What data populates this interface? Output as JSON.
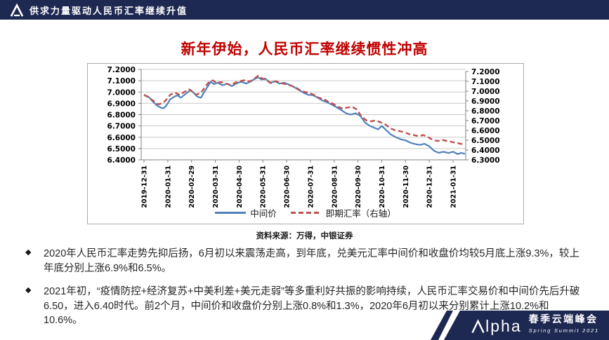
{
  "header": {
    "title": "供求力量驱动人民币汇率继续升值",
    "bg_color": "#1e2952"
  },
  "slide": {
    "title": "新年伊始，人民币汇率继续惯性冲高",
    "title_color": "#c00000"
  },
  "chart_data": {
    "type": "line",
    "title": "",
    "grid": true,
    "legend_position": "bottom",
    "x_tick_labels": [
      "2019-12-31",
      "2020-01-31",
      "2020-02-29",
      "2020-03-31",
      "2020-04-30",
      "2020-05-31",
      "2020-06-30",
      "2020-07-31",
      "2020-08-31",
      "2020-09-30",
      "2020-10-31",
      "2020-11-30",
      "2020-12-31",
      "2021-01-31"
    ],
    "left_axis": {
      "min": 6.4,
      "max": 7.2,
      "step": 0.1,
      "tick_labels": [
        "7.2000",
        "7.1000",
        "7.0000",
        "6.9000",
        "6.8000",
        "6.7000",
        "6.6000",
        "6.5000",
        "6.4000"
      ],
      "tick_values": [
        7.2,
        7.1,
        7.0,
        6.9,
        6.8,
        6.7,
        6.6,
        6.5,
        6.4
      ]
    },
    "right_axis": {
      "min": 6.3,
      "max": 7.2,
      "step": 0.1,
      "tick_labels": [
        "7.2000",
        "7.1000",
        "7.0000",
        "6.9000",
        "6.8000",
        "6.7000",
        "6.6000",
        "6.5000",
        "6.4000",
        "6.3000"
      ],
      "tick_values": [
        7.2,
        7.1,
        7.0,
        6.9,
        6.8,
        6.7,
        6.6,
        6.5,
        6.4,
        6.3
      ]
    },
    "series": [
      {
        "name": "中间价",
        "axis": "left",
        "color": "#4f81bd",
        "style": "solid",
        "x": [
          0,
          0.2,
          0.4,
          0.55,
          0.7,
          0.8,
          0.9,
          1.0,
          1.1,
          1.25,
          1.4,
          1.55,
          1.7,
          1.85,
          1.95,
          2.1,
          2.25,
          2.4,
          2.55,
          2.7,
          2.8,
          2.95,
          3.1,
          3.3,
          3.5,
          3.7,
          3.9,
          4.1,
          4.3,
          4.5,
          4.65,
          4.8,
          4.95,
          5.1,
          5.3,
          5.5,
          5.7,
          5.9,
          6.1,
          6.3,
          6.5,
          6.7,
          6.9,
          7.1,
          7.3,
          7.5,
          7.7,
          7.9,
          8.1,
          8.3,
          8.5,
          8.7,
          8.9,
          9.1,
          9.3,
          9.5,
          9.7,
          9.85,
          10.0,
          10.2,
          10.4,
          10.6,
          10.8,
          11.0,
          11.2,
          11.4,
          11.6,
          11.8,
          12.0,
          12.2,
          12.4,
          12.6,
          12.8,
          13.0,
          13.2,
          13.35,
          13.5
        ],
        "values": [
          6.976,
          6.955,
          6.91,
          6.88,
          6.862,
          6.855,
          6.87,
          6.9,
          6.935,
          6.955,
          6.972,
          6.95,
          6.975,
          7.0,
          7.02,
          6.99,
          6.958,
          6.95,
          7.005,
          7.055,
          7.09,
          7.07,
          7.083,
          7.06,
          7.072,
          7.052,
          7.078,
          7.09,
          7.075,
          7.095,
          7.115,
          7.13,
          7.11,
          7.12,
          7.08,
          7.095,
          7.075,
          7.082,
          7.065,
          7.045,
          7.02,
          6.995,
          6.975,
          6.973,
          6.95,
          6.925,
          6.91,
          6.888,
          6.865,
          6.84,
          6.812,
          6.8,
          6.812,
          6.788,
          6.73,
          6.7,
          6.682,
          6.67,
          6.7,
          6.66,
          6.622,
          6.6,
          6.582,
          6.572,
          6.552,
          6.54,
          6.532,
          6.542,
          6.52,
          6.48,
          6.462,
          6.472,
          6.46,
          6.472,
          6.45,
          6.462,
          6.452
        ]
      },
      {
        "name": "即期汇率（右轴）",
        "axis": "right",
        "color": "#c0504d",
        "style": "dashed",
        "x": [
          0,
          0.2,
          0.4,
          0.6,
          0.8,
          0.95,
          1.1,
          1.3,
          1.5,
          1.7,
          1.9,
          2.05,
          2.2,
          2.4,
          2.6,
          2.75,
          2.9,
          3.05,
          3.25,
          3.45,
          3.65,
          3.85,
          4.05,
          4.25,
          4.45,
          4.65,
          4.8,
          4.95,
          5.15,
          5.35,
          5.55,
          5.75,
          5.95,
          6.15,
          6.35,
          6.55,
          6.75,
          6.95,
          7.15,
          7.35,
          7.55,
          7.75,
          7.95,
          8.15,
          8.35,
          8.55,
          8.75,
          8.95,
          9.15,
          9.35,
          9.55,
          9.75,
          9.95,
          10.15,
          10.35,
          10.55,
          10.75,
          10.95,
          11.15,
          11.35,
          11.55,
          11.75,
          11.95,
          12.15,
          12.35,
          12.55,
          12.75,
          12.95,
          13.15,
          13.35,
          13.5
        ],
        "values": [
          6.962,
          6.936,
          6.9,
          6.866,
          6.878,
          6.916,
          6.962,
          6.985,
          6.962,
          6.992,
          7.018,
          6.992,
          6.962,
          6.985,
          7.052,
          7.098,
          7.11,
          7.082,
          7.092,
          7.078,
          7.062,
          7.088,
          7.102,
          7.112,
          7.098,
          7.128,
          7.158,
          7.132,
          7.112,
          7.082,
          7.102,
          7.082,
          7.072,
          7.058,
          7.042,
          7.012,
          6.992,
          6.982,
          6.962,
          6.932,
          6.922,
          6.892,
          6.872,
          6.842,
          6.822,
          6.832,
          6.842,
          6.812,
          6.742,
          6.702,
          6.692,
          6.702,
          6.682,
          6.662,
          6.622,
          6.602,
          6.592,
          6.582,
          6.562,
          6.552,
          6.542,
          6.552,
          6.532,
          6.502,
          6.492,
          6.502,
          6.492,
          6.482,
          6.472,
          6.462,
          6.462
        ]
      }
    ],
    "colors": {
      "grid": "#c9c9c9",
      "axis": "#808080",
      "tick_text": "#000000"
    }
  },
  "source": {
    "text": "资料来源：万得，中银证券"
  },
  "bullets": [
    {
      "text": "2020年人民币汇率走势先抑后扬，6月初以来震荡走高，到年底，兑美元汇率中间价和收盘价均较5月底上涨9.3%，较上年底分别上涨6.9%和6.5%。"
    },
    {
      "text": "2021年初，“疫情防控+经济复苏+中美利差+美元走弱”等多重利好共振的影响持续，人民币汇率交易价和中间价先后升破6.50，进入6.40时代。前2个月，中间价和收盘价分别上涨0.8%和1.3%，2020年6月初以来分别累计上涨10.2%和10.6%。"
    }
  ],
  "footer": {
    "logo_rest": "lpha",
    "summit_cn": "春季云端峰会",
    "summit_en": "Spring Summit 2021",
    "banner_color": "#1e2952"
  }
}
